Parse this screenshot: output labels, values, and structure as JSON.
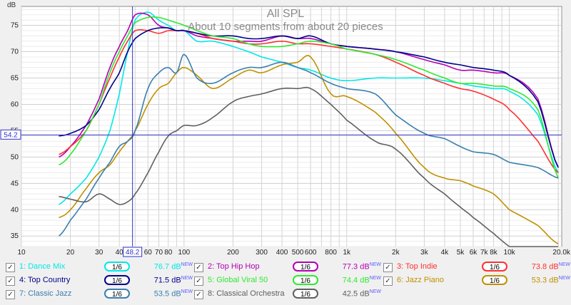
{
  "chart_data": {
    "type": "line",
    "title": "All SPL",
    "subtitle": "About 10 segments from about 20 pieces",
    "ylabel": "dB",
    "xscale": "log",
    "xlim": [
      10,
      21000
    ],
    "ylim": [
      33,
      78.6
    ],
    "grid": true,
    "yticks": [
      35,
      40,
      45,
      50,
      55,
      60,
      65,
      70,
      75
    ],
    "xticks": [
      {
        "v": 10,
        "label": "10"
      },
      {
        "v": 20,
        "label": "20"
      },
      {
        "v": 30,
        "label": "30"
      },
      {
        "v": 40,
        "label": "40"
      },
      {
        "v": 60,
        "label": "60"
      },
      {
        "v": 70,
        "label": "70"
      },
      {
        "v": 80,
        "label": "80"
      },
      {
        "v": 100,
        "label": "100"
      },
      {
        "v": 200,
        "label": "200"
      },
      {
        "v": 300,
        "label": "300"
      },
      {
        "v": 400,
        "label": "400"
      },
      {
        "v": 500,
        "label": "500"
      },
      {
        "v": 600,
        "label": "600"
      },
      {
        "v": 800,
        "label": "800"
      },
      {
        "v": 1000,
        "label": "1k"
      },
      {
        "v": 2000,
        "label": "2k"
      },
      {
        "v": 3000,
        "label": "3k"
      },
      {
        "v": 4000,
        "label": "4k"
      },
      {
        "v": 5000,
        "label": "5k"
      },
      {
        "v": 6000,
        "label": "6k"
      },
      {
        "v": 7000,
        "label": "7k"
      },
      {
        "v": 8000,
        "label": "8k"
      },
      {
        "v": 10000,
        "label": "10k"
      },
      {
        "v": 20000,
        "label": "20.0k Hz"
      }
    ],
    "cursor": {
      "x": 48.2,
      "y": 54.2,
      "x_label": "48.2",
      "y_label": "54.2"
    },
    "x": [
      17,
      20,
      25,
      30,
      35,
      40,
      45,
      50,
      60,
      70,
      80,
      90,
      100,
      120,
      150,
      200,
      250,
      300,
      400,
      500,
      600,
      800,
      1000,
      1500,
      2000,
      3000,
      4000,
      5000,
      6000,
      8000,
      10000,
      15000,
      20000
    ],
    "series": [
      {
        "name": "1: Dance Mix",
        "color": "#00e8e8",
        "values": [
          41,
          43,
          46,
          50,
          55,
          62,
          70,
          76,
          77.5,
          76,
          75,
          74,
          74,
          72,
          72,
          71,
          70,
          69,
          68,
          67,
          66.5,
          65,
          64.5,
          65,
          65,
          65,
          64.5,
          64,
          63.5,
          63,
          62.5,
          58,
          47
        ]
      },
      {
        "name": "2: Top Hip Hop",
        "color": "#b400b4",
        "values": [
          50,
          52,
          56,
          61,
          67,
          71,
          74,
          77,
          77,
          75,
          74.5,
          74,
          74,
          73,
          72.5,
          72,
          72,
          72,
          73,
          72.5,
          72.5,
          71.5,
          71,
          70.5,
          70,
          68.5,
          67.5,
          66.5,
          66.5,
          66,
          65.5,
          61,
          48
        ]
      },
      {
        "name": "3: Top Indie",
        "color": "#ff3030",
        "values": [
          50.5,
          52,
          55,
          60,
          65,
          69,
          72,
          74,
          74,
          73.5,
          74,
          74,
          74,
          73.5,
          72.5,
          72,
          71.5,
          71.5,
          72,
          71.5,
          71.5,
          71,
          70.5,
          69.5,
          68,
          65.5,
          64,
          63,
          62.5,
          61,
          59,
          53,
          47
        ]
      },
      {
        "name": "4: Top Country",
        "color": "#00008c",
        "values": [
          54,
          54.5,
          56,
          59,
          63,
          66,
          70,
          72.5,
          74,
          74.5,
          74.5,
          74,
          74,
          73.5,
          73,
          73,
          72.5,
          72.5,
          73,
          72.5,
          73,
          71.5,
          71,
          70.5,
          70,
          69,
          68,
          67.5,
          67,
          66.5,
          65.5,
          60.5,
          48
        ]
      },
      {
        "name": "5: Global Viral 50",
        "color": "#30e830",
        "values": [
          48.5,
          50.5,
          55,
          60,
          66,
          70,
          73,
          75.5,
          76.5,
          76.5,
          76,
          75.5,
          75,
          74,
          73,
          72.5,
          71.5,
          71,
          71,
          71.5,
          72,
          71.5,
          70.5,
          69.5,
          68.5,
          66.5,
          65,
          64,
          64,
          63.5,
          63,
          59,
          46
        ]
      },
      {
        "name": "6: Jazz Piano",
        "color": "#c09000",
        "values": [
          38.5,
          40,
          44,
          47,
          48.5,
          51,
          53,
          55,
          60,
          63,
          64,
          66,
          67,
          65.5,
          63,
          65,
          66.5,
          66,
          67.5,
          68,
          69,
          62,
          61.5,
          58.5,
          54.5,
          48,
          46,
          45.5,
          44.5,
          43,
          40,
          37,
          33.5
        ]
      },
      {
        "name": "7: Classic Jazz",
        "color": "#3a7fb0",
        "values": [
          35,
          38,
          42,
          46,
          49,
          52,
          53,
          55,
          63,
          66,
          67,
          66,
          69.5,
          65,
          64,
          66,
          67,
          67,
          68,
          67,
          66,
          64,
          63,
          62,
          58,
          54.5,
          53.5,
          52,
          51,
          50.5,
          49,
          48,
          46
        ]
      },
      {
        "name": "8: Classical Orchestra",
        "color": "#606060",
        "values": [
          42.5,
          42,
          41.5,
          43,
          42,
          41,
          41.5,
          43,
          47,
          51,
          54,
          55,
          56,
          56,
          57.5,
          60.5,
          61.5,
          62,
          63,
          63,
          63,
          60,
          57,
          53,
          51.5,
          46,
          43,
          40.5,
          38.5,
          35.5,
          33,
          31,
          29
        ]
      }
    ]
  },
  "legend": [
    {
      "num": "1:",
      "label": "Dance Mix",
      "smoothing": "1/6",
      "value": "76.7 dB",
      "badge": "NEW",
      "checked": "✓",
      "color": "#00e8e8"
    },
    {
      "num": "2:",
      "label": "Top Hip Hop",
      "smoothing": "1/6",
      "value": "77.3 dB",
      "badge": "NEW",
      "checked": "✓",
      "color": "#b400b4"
    },
    {
      "num": "3:",
      "label": "Top Indie",
      "smoothing": "1/6",
      "value": "73.8 dB",
      "badge": "NEW",
      "checked": "✓",
      "color": "#ff3030"
    },
    {
      "num": "4:",
      "label": "Top Country",
      "smoothing": "1/6",
      "value": "71.5 dB",
      "badge": "NEW",
      "checked": "✓",
      "color": "#00008c"
    },
    {
      "num": "5:",
      "label": "Global Viral 50",
      "smoothing": "1/6",
      "value": "74.4 dB",
      "badge": "NEW",
      "checked": "✓",
      "color": "#30e830"
    },
    {
      "num": "6:",
      "label": "Jazz Piano",
      "smoothing": "1/6",
      "value": "53.3 dB",
      "badge": "NEW",
      "checked": "✓",
      "color": "#c09000"
    },
    {
      "num": "7:",
      "label": "Classic Jazz",
      "smoothing": "1/6",
      "value": "53.5 dB",
      "badge": "NEW",
      "checked": "✓",
      "color": "#3a7fb0"
    },
    {
      "num": "8:",
      "label": "Classical Orchestra",
      "smoothing": "1/6",
      "value": "42.5 dB",
      "badge": "NEW",
      "checked": "✓",
      "color": "#606060"
    }
  ]
}
